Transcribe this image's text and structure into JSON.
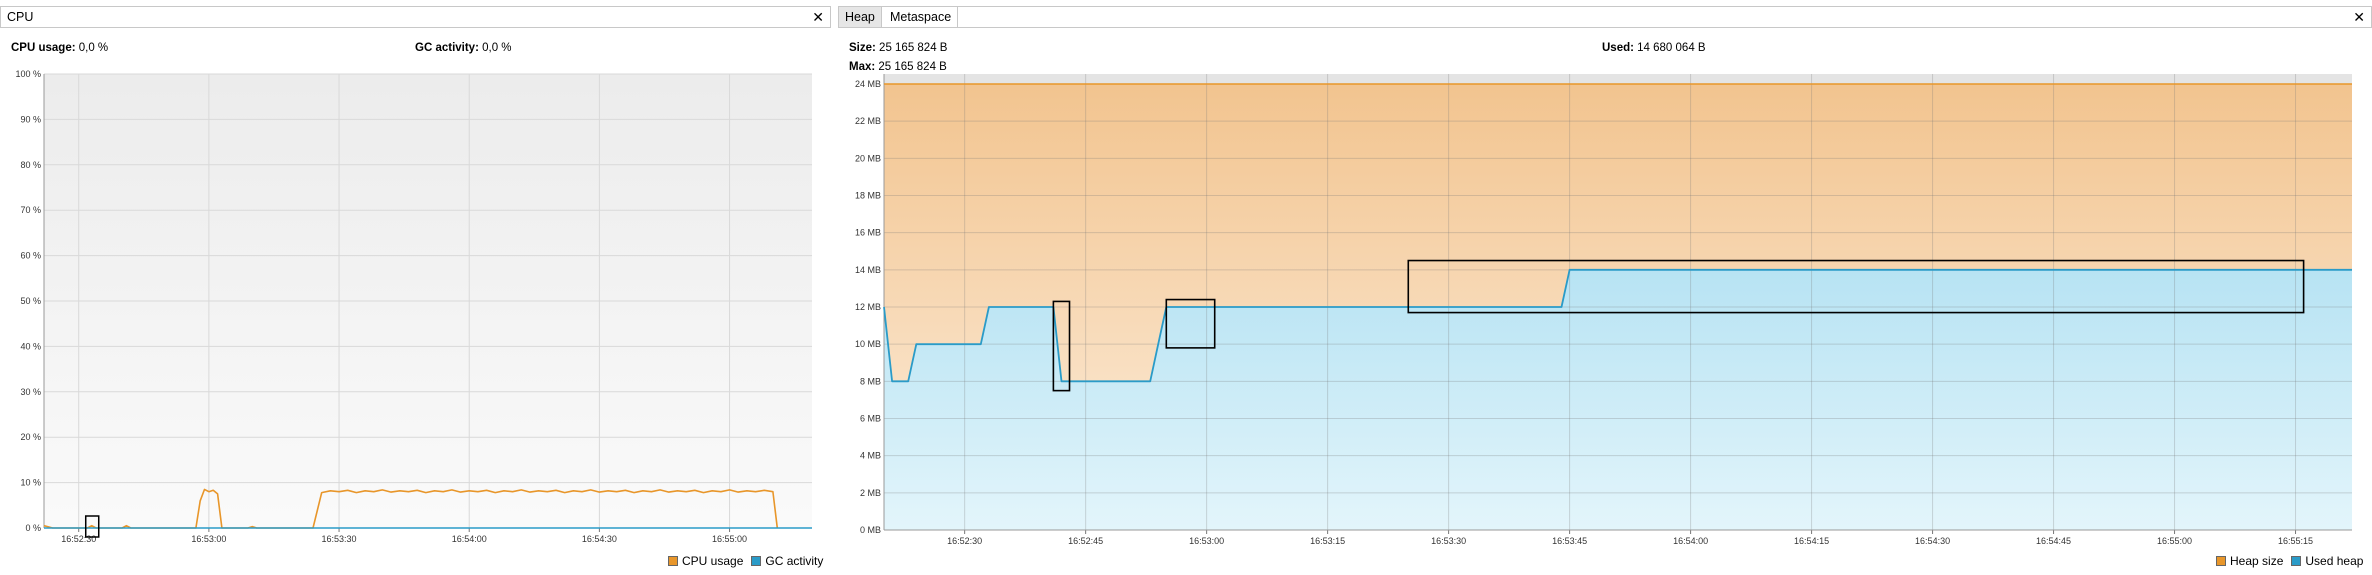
{
  "cpu": {
    "tab_label": "CPU",
    "cpu_usage_label": "CPU usage:",
    "cpu_usage_value": "0,0 %",
    "gc_activity_label": "GC activity:",
    "gc_activity_value": "0,0 %",
    "legend": {
      "cpu_label": "CPU usage",
      "gc_label": "GC activity",
      "cpu_color": "#e8962a",
      "gc_color": "#2a9bc8"
    }
  },
  "heap": {
    "tab_heap": "Heap",
    "tab_metaspace": "Metaspace",
    "size_label": "Size:",
    "size_value": "25 165 824 B",
    "max_label": "Max:",
    "max_value": "25 165 824 B",
    "used_label": "Used:",
    "used_value": "14 680 064 B",
    "legend": {
      "heap_label": "Heap size",
      "used_label": "Used heap",
      "heap_color": "#e8962a",
      "used_color": "#2a9bc8"
    }
  },
  "chart_data": [
    {
      "type": "line",
      "title": "",
      "xlabel": "",
      "ylabel": "",
      "x_ticks": [
        "16:52:30",
        "16:53:00",
        "16:53:30",
        "16:54:00",
        "16:54:30",
        "16:55:00"
      ],
      "y_ticks": [
        "0 %",
        "10 %",
        "20 %",
        "30 %",
        "40 %",
        "50 %",
        "60 %",
        "70 %",
        "80 %",
        "90 %",
        "100 %"
      ],
      "ylim": [
        0,
        100
      ],
      "x_seconds_range": [
        "16:52:22",
        "16:55:19"
      ],
      "grid": true,
      "legend_position": "bottom-right",
      "series": [
        {
          "name": "CPU usage",
          "color": "#e8962a",
          "points": [
            [
              "16:52:22",
              0.5
            ],
            [
              "16:52:24",
              0.0
            ],
            [
              "16:52:32",
              0.0
            ],
            [
              "16:52:33",
              0.5
            ],
            [
              "16:52:34",
              0.0
            ],
            [
              "16:52:40",
              0.0
            ],
            [
              "16:52:41",
              0.5
            ],
            [
              "16:52:42",
              0.0
            ],
            [
              "16:52:57",
              0.0
            ],
            [
              "16:52:58",
              6.0
            ],
            [
              "16:52:59",
              8.5
            ],
            [
              "16:53:00",
              8.0
            ],
            [
              "16:53:01",
              8.3
            ],
            [
              "16:53:02",
              7.5
            ],
            [
              "16:53:03",
              0.0
            ],
            [
              "16:53:09",
              0.0
            ],
            [
              "16:53:10",
              0.3
            ],
            [
              "16:53:11",
              0.0
            ],
            [
              "16:53:24",
              0.0
            ],
            [
              "16:53:26",
              7.8
            ],
            [
              "16:53:28",
              8.2
            ],
            [
              "16:53:30",
              8.0
            ],
            [
              "16:53:32",
              8.3
            ],
            [
              "16:53:34",
              7.8
            ],
            [
              "16:53:36",
              8.2
            ],
            [
              "16:53:38",
              8.0
            ],
            [
              "16:53:40",
              8.4
            ],
            [
              "16:53:42",
              7.9
            ],
            [
              "16:53:44",
              8.2
            ],
            [
              "16:53:46",
              8.0
            ],
            [
              "16:53:48",
              8.3
            ],
            [
              "16:53:50",
              7.8
            ],
            [
              "16:53:52",
              8.2
            ],
            [
              "16:53:54",
              8.0
            ],
            [
              "16:53:56",
              8.4
            ],
            [
              "16:53:58",
              7.9
            ],
            [
              "16:54:00",
              8.2
            ],
            [
              "16:54:02",
              8.0
            ],
            [
              "16:54:04",
              8.3
            ],
            [
              "16:54:06",
              7.8
            ],
            [
              "16:54:08",
              8.2
            ],
            [
              "16:54:10",
              8.0
            ],
            [
              "16:54:12",
              8.4
            ],
            [
              "16:54:14",
              7.9
            ],
            [
              "16:54:16",
              8.2
            ],
            [
              "16:54:18",
              8.0
            ],
            [
              "16:54:20",
              8.3
            ],
            [
              "16:54:22",
              7.8
            ],
            [
              "16:54:24",
              8.2
            ],
            [
              "16:54:26",
              8.0
            ],
            [
              "16:54:28",
              8.4
            ],
            [
              "16:54:30",
              7.9
            ],
            [
              "16:54:32",
              8.2
            ],
            [
              "16:54:34",
              8.0
            ],
            [
              "16:54:36",
              8.3
            ],
            [
              "16:54:38",
              7.8
            ],
            [
              "16:54:40",
              8.2
            ],
            [
              "16:54:42",
              8.0
            ],
            [
              "16:54:44",
              8.4
            ],
            [
              "16:54:46",
              7.9
            ],
            [
              "16:54:48",
              8.2
            ],
            [
              "16:54:50",
              8.0
            ],
            [
              "16:54:52",
              8.3
            ],
            [
              "16:54:54",
              7.8
            ],
            [
              "16:54:56",
              8.2
            ],
            [
              "16:54:58",
              8.0
            ],
            [
              "16:55:00",
              8.4
            ],
            [
              "16:55:02",
              7.9
            ],
            [
              "16:55:04",
              8.2
            ],
            [
              "16:55:06",
              8.0
            ],
            [
              "16:55:08",
              8.3
            ],
            [
              "16:55:10",
              8.0
            ],
            [
              "16:55:11",
              0.0
            ]
          ]
        },
        {
          "name": "GC activity",
          "color": "#2a9bc8",
          "points": [
            [
              "16:52:22",
              0.0
            ],
            [
              "16:55:19",
              0.0
            ]
          ]
        }
      ]
    },
    {
      "type": "area",
      "title": "",
      "xlabel": "",
      "ylabel": "",
      "x_ticks": [
        "16:52:30",
        "16:52:45",
        "16:53:00",
        "16:53:15",
        "16:53:30",
        "16:53:45",
        "16:54:00",
        "16:54:15",
        "16:54:30",
        "16:54:45",
        "16:55:00",
        "16:55:15"
      ],
      "y_ticks": [
        "0 MB",
        "2 MB",
        "4 MB",
        "6 MB",
        "8 MB",
        "10 MB",
        "12 MB",
        "14 MB",
        "16 MB",
        "18 MB",
        "20 MB",
        "22 MB",
        "24 MB"
      ],
      "ylim": [
        0,
        24
      ],
      "x_seconds_range": [
        "16:52:20",
        "16:55:22"
      ],
      "grid": true,
      "legend_position": "bottom-right",
      "series": [
        {
          "name": "Heap size",
          "color": "#e8962a",
          "points": [
            [
              "16:52:20",
              24
            ],
            [
              "16:55:22",
              24
            ]
          ]
        },
        {
          "name": "Used heap",
          "color": "#2a9bc8",
          "points": [
            [
              "16:52:20",
              12
            ],
            [
              "16:52:21",
              8
            ],
            [
              "16:52:23",
              8
            ],
            [
              "16:52:24",
              10
            ],
            [
              "16:52:32",
              10
            ],
            [
              "16:52:33",
              12
            ],
            [
              "16:52:41",
              12
            ],
            [
              "16:52:42",
              8
            ],
            [
              "16:52:53",
              8
            ],
            [
              "16:52:54",
              10
            ],
            [
              "16:52:55",
              12
            ],
            [
              "16:53:44",
              12
            ],
            [
              "16:53:45",
              14
            ],
            [
              "16:55:22",
              14
            ]
          ]
        }
      ]
    }
  ]
}
